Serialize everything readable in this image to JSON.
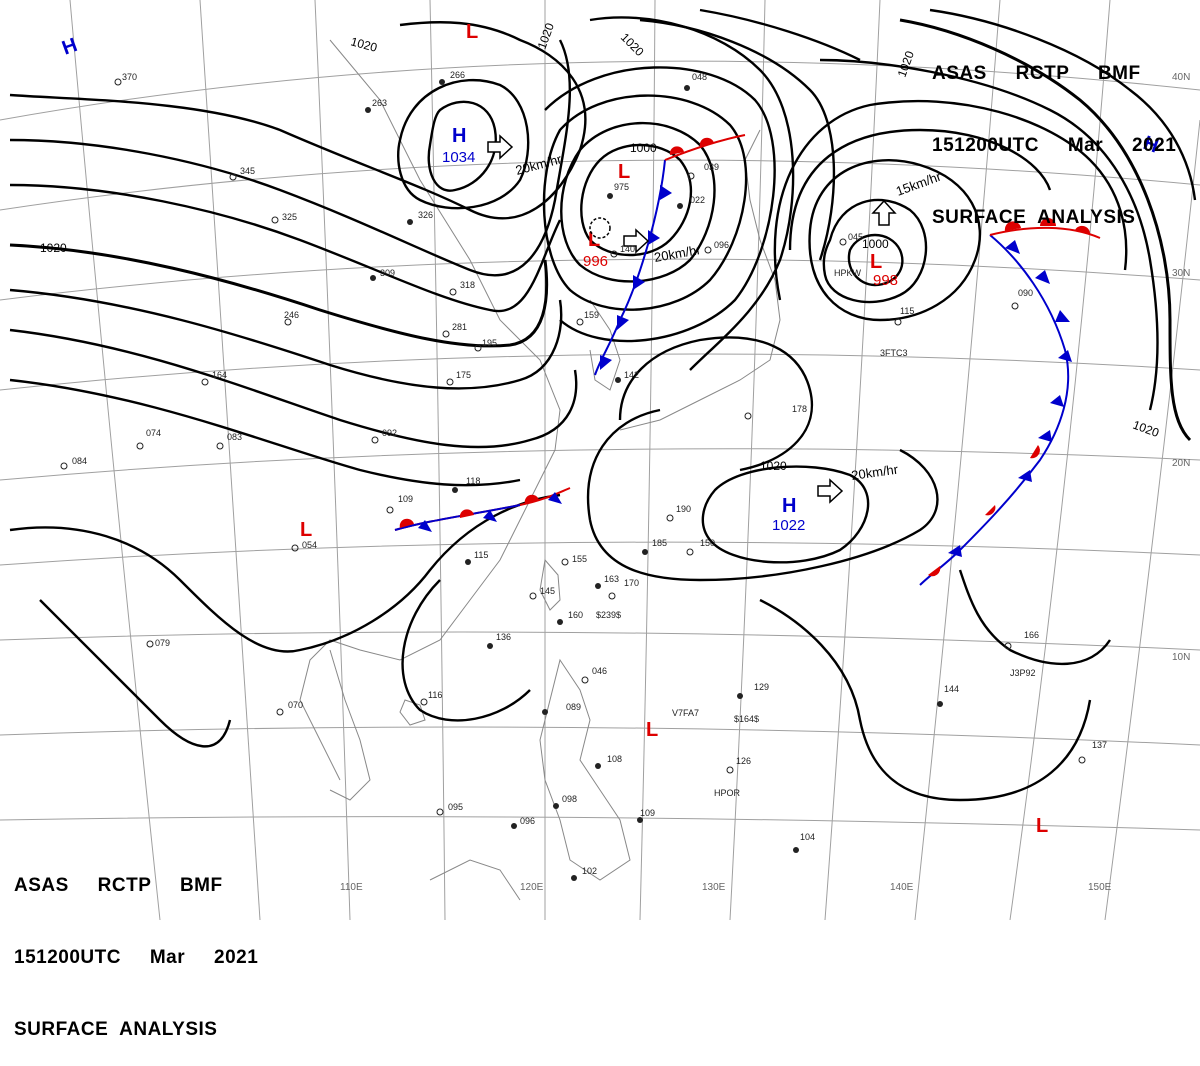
{
  "header": {
    "line1": "ASAS     RCTP     BMF",
    "line2": "151200UTC     Mar     2021",
    "line3": "SURFACE  ANALYSIS"
  },
  "colors": {
    "high": "#0000cc",
    "low": "#dd0000",
    "isobar": "#000000",
    "grid": "#9a9a9a",
    "coast": "#888888"
  },
  "lat_labels": [
    "40N",
    "30N",
    "20N",
    "10N"
  ],
  "lon_labels": [
    "110E",
    "120E",
    "130E",
    "140E",
    "150E"
  ],
  "isobar_labels": [
    "1020",
    "1020",
    "1020",
    "1020",
    "1000",
    "1020",
    "1000",
    "1020",
    "1020"
  ],
  "centers": {
    "highs": [
      {
        "label": "H",
        "value": ""
      },
      {
        "label": "H",
        "value": "1034"
      },
      {
        "label": "H",
        "value": ""
      },
      {
        "label": "H",
        "value": "1022"
      }
    ],
    "lows": [
      {
        "label": "L",
        "value": ""
      },
      {
        "label": "L",
        "value": "996"
      },
      {
        "label": "L",
        "value": "998"
      },
      {
        "label": "L",
        "value": ""
      },
      {
        "label": "L",
        "value": ""
      },
      {
        "label": "L",
        "value": ""
      },
      {
        "label": "L",
        "value": ""
      }
    ]
  },
  "motions": [
    "20km/hr",
    "20km/hr",
    "15km/hr",
    "20km/hr"
  ],
  "stations": [
    "370",
    "263",
    "266",
    "345",
    "325",
    "326",
    "309",
    "318",
    "246",
    "281",
    "195",
    "175",
    "164",
    "092",
    "083",
    "074",
    "084",
    "109",
    "118",
    "115",
    "054",
    "155",
    "145",
    "160",
    "163",
    "170",
    "136",
    "079",
    "116",
    "070",
    "046",
    "089",
    "129",
    "108",
    "126",
    "098",
    "109",
    "095",
    "096",
    "102",
    "104",
    "144",
    "137",
    "166",
    "178",
    "190",
    "185",
    "150",
    "142",
    "159",
    "115",
    "090",
    "045",
    "048",
    "039",
    "022",
    "140",
    "096",
    "975"
  ],
  "station_marks": [
    "V7FA7",
    "$164$",
    "$239$",
    "HPOR",
    "J3P92",
    "3FTC3",
    "HPKW"
  ]
}
